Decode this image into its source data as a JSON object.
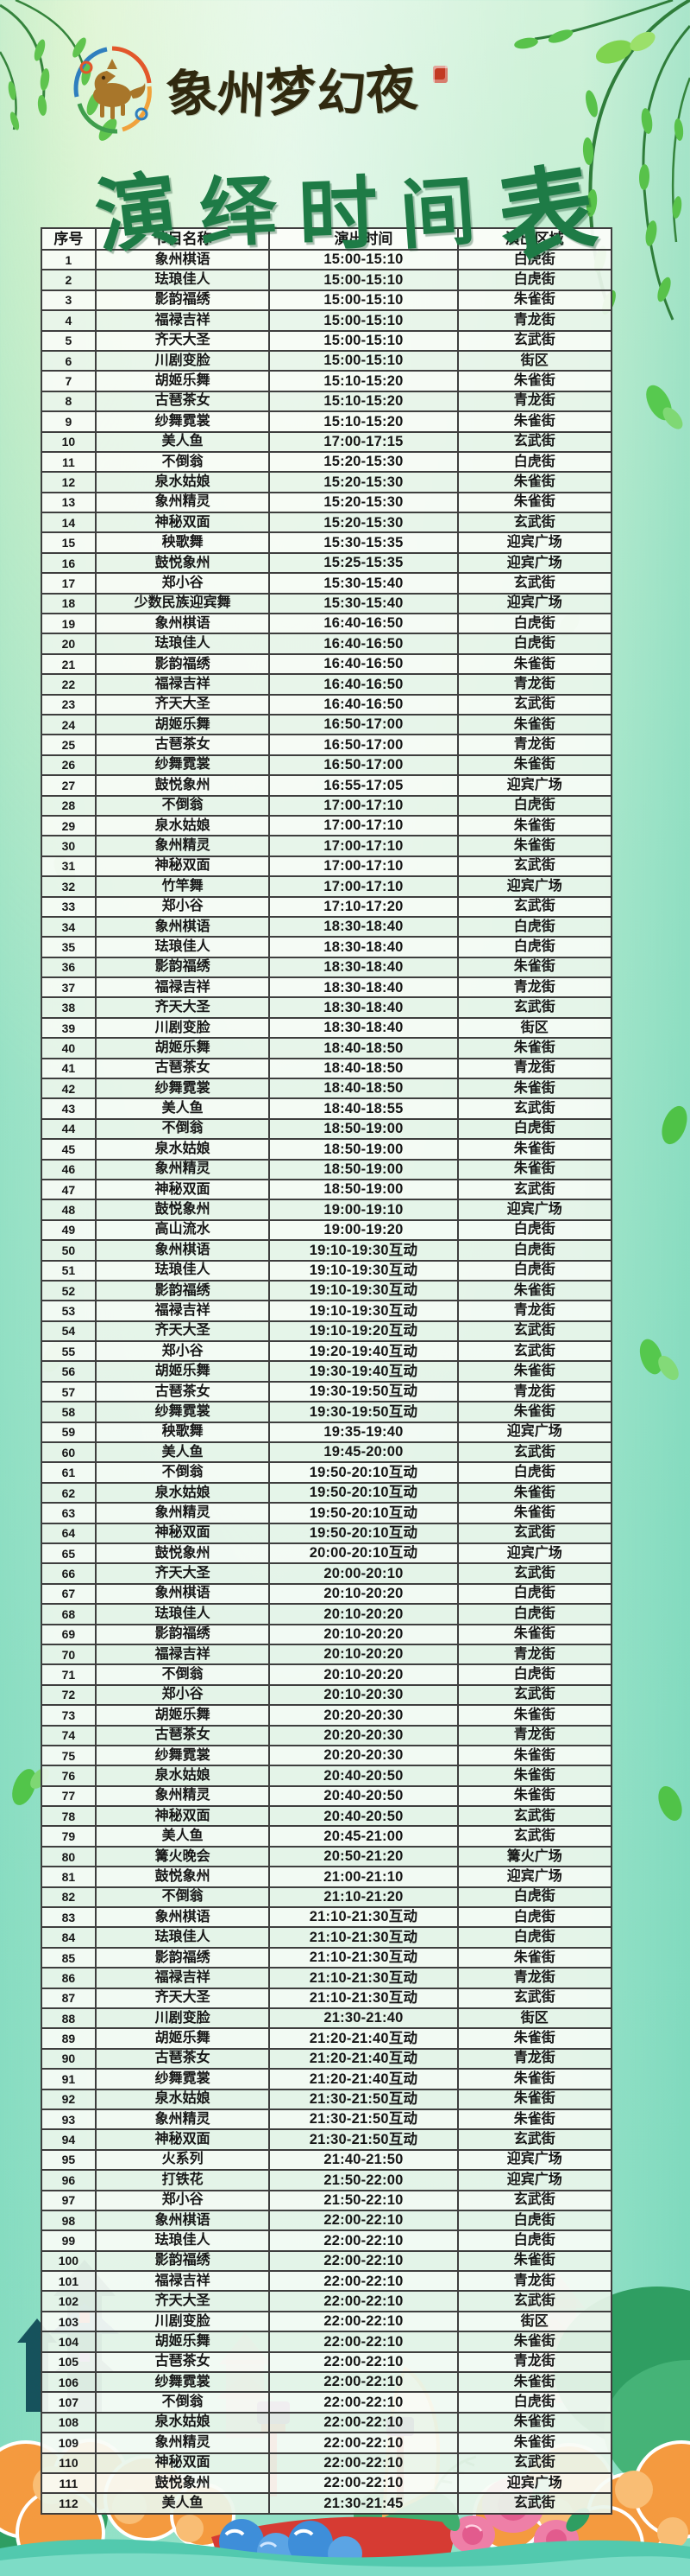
{
  "poster": {
    "brand": "象州梦幻夜",
    "title": "演绎时间表"
  },
  "colors": {
    "background_mint": "#a9e8cd",
    "title_green": "#1e7b46",
    "table_border": "#3e3e3e",
    "seal_red": "#c23a22",
    "cloud_orange": "#f49a3f",
    "flower_pink": "#ee7fa7",
    "wave_blue": "#3e8ed9",
    "boat_red": "#d63b33",
    "band_teal": "#7ddcc6"
  },
  "table": {
    "headers": [
      "序号",
      "节目名称",
      "演出时间",
      "演出区域"
    ],
    "rows": [
      [
        "1",
        "象州棋语",
        "15:00-15:10",
        "白虎街"
      ],
      [
        "2",
        "珐琅佳人",
        "15:00-15:10",
        "白虎街"
      ],
      [
        "3",
        "影韵福绣",
        "15:00-15:10",
        "朱雀街"
      ],
      [
        "4",
        "福禄吉祥",
        "15:00-15:10",
        "青龙街"
      ],
      [
        "5",
        "齐天大圣",
        "15:00-15:10",
        "玄武街"
      ],
      [
        "6",
        "川剧变脸",
        "15:00-15:10",
        "街区"
      ],
      [
        "7",
        "胡姬乐舞",
        "15:10-15:20",
        "朱雀街"
      ],
      [
        "8",
        "古琶茶女",
        "15:10-15:20",
        "青龙街"
      ],
      [
        "9",
        "纱舞霓裳",
        "15:10-15:20",
        "朱雀街"
      ],
      [
        "10",
        "美人鱼",
        "17:00-17:15",
        "玄武街"
      ],
      [
        "11",
        "不倒翁",
        "15:20-15:30",
        "白虎街"
      ],
      [
        "12",
        "泉水姑娘",
        "15:20-15:30",
        "朱雀街"
      ],
      [
        "13",
        "象州精灵",
        "15:20-15:30",
        "朱雀街"
      ],
      [
        "14",
        "神秘双面",
        "15:20-15:30",
        "玄武街"
      ],
      [
        "15",
        "秧歌舞",
        "15:30-15:35",
        "迎宾广场"
      ],
      [
        "16",
        "鼓悦象州",
        "15:25-15:35",
        "迎宾广场"
      ],
      [
        "17",
        "郑小谷",
        "15:30-15:40",
        "玄武街"
      ],
      [
        "18",
        "少数民族迎宾舞",
        "15:30-15:40",
        "迎宾广场"
      ],
      [
        "19",
        "象州棋语",
        "16:40-16:50",
        "白虎街"
      ],
      [
        "20",
        "珐琅佳人",
        "16:40-16:50",
        "白虎街"
      ],
      [
        "21",
        "影韵福绣",
        "16:40-16:50",
        "朱雀街"
      ],
      [
        "22",
        "福禄吉祥",
        "16:40-16:50",
        "青龙街"
      ],
      [
        "23",
        "齐天大圣",
        "16:40-16:50",
        "玄武街"
      ],
      [
        "24",
        "胡姬乐舞",
        "16:50-17:00",
        "朱雀街"
      ],
      [
        "25",
        "古琶茶女",
        "16:50-17:00",
        "青龙街"
      ],
      [
        "26",
        "纱舞霓裳",
        "16:50-17:00",
        "朱雀街"
      ],
      [
        "27",
        "鼓悦象州",
        "16:55-17:05",
        "迎宾广场"
      ],
      [
        "28",
        "不倒翁",
        "17:00-17:10",
        "白虎街"
      ],
      [
        "29",
        "泉水姑娘",
        "17:00-17:10",
        "朱雀街"
      ],
      [
        "30",
        "象州精灵",
        "17:00-17:10",
        "朱雀街"
      ],
      [
        "31",
        "神秘双面",
        "17:00-17:10",
        "玄武街"
      ],
      [
        "32",
        "竹竿舞",
        "17:00-17:10",
        "迎宾广场"
      ],
      [
        "33",
        "郑小谷",
        "17:10-17:20",
        "玄武街"
      ],
      [
        "34",
        "象州棋语",
        "18:30-18:40",
        "白虎街"
      ],
      [
        "35",
        "珐琅佳人",
        "18:30-18:40",
        "白虎街"
      ],
      [
        "36",
        "影韵福绣",
        "18:30-18:40",
        "朱雀街"
      ],
      [
        "37",
        "福禄吉祥",
        "18:30-18:40",
        "青龙街"
      ],
      [
        "38",
        "齐天大圣",
        "18:30-18:40",
        "玄武街"
      ],
      [
        "39",
        "川剧变脸",
        "18:30-18:40",
        "街区"
      ],
      [
        "40",
        "胡姬乐舞",
        "18:40-18:50",
        "朱雀街"
      ],
      [
        "41",
        "古琶茶女",
        "18:40-18:50",
        "青龙街"
      ],
      [
        "42",
        "纱舞霓裳",
        "18:40-18:50",
        "朱雀街"
      ],
      [
        "43",
        "美人鱼",
        "18:40-18:55",
        "玄武街"
      ],
      [
        "44",
        "不倒翁",
        "18:50-19:00",
        "白虎街"
      ],
      [
        "45",
        "泉水姑娘",
        "18:50-19:00",
        "朱雀街"
      ],
      [
        "46",
        "象州精灵",
        "18:50-19:00",
        "朱雀街"
      ],
      [
        "47",
        "神秘双面",
        "18:50-19:00",
        "玄武街"
      ],
      [
        "48",
        "鼓悦象州",
        "19:00-19:10",
        "迎宾广场"
      ],
      [
        "49",
        "高山流水",
        "19:00-19:20",
        "白虎街"
      ],
      [
        "50",
        "象州棋语",
        "19:10-19:30互动",
        "白虎街"
      ],
      [
        "51",
        "珐琅佳人",
        "19:10-19:30互动",
        "白虎街"
      ],
      [
        "52",
        "影韵福绣",
        "19:10-19:30互动",
        "朱雀街"
      ],
      [
        "53",
        "福禄吉祥",
        "19:10-19:30互动",
        "青龙街"
      ],
      [
        "54",
        "齐天大圣",
        "19:10-19:20互动",
        "玄武街"
      ],
      [
        "55",
        "郑小谷",
        "19:20-19:40互动",
        "玄武街"
      ],
      [
        "56",
        "胡姬乐舞",
        "19:30-19:40互动",
        "朱雀街"
      ],
      [
        "57",
        "古琶茶女",
        "19:30-19:50互动",
        "青龙街"
      ],
      [
        "58",
        "纱舞霓裳",
        "19:30-19:50互动",
        "朱雀街"
      ],
      [
        "59",
        "秧歌舞",
        "19:35-19:40",
        "迎宾广场"
      ],
      [
        "60",
        "美人鱼",
        "19:45-20:00",
        "玄武街"
      ],
      [
        "61",
        "不倒翁",
        "19:50-20:10互动",
        "白虎街"
      ],
      [
        "62",
        "泉水姑娘",
        "19:50-20:10互动",
        "朱雀街"
      ],
      [
        "63",
        "象州精灵",
        "19:50-20:10互动",
        "朱雀街"
      ],
      [
        "64",
        "神秘双面",
        "19:50-20:10互动",
        "玄武街"
      ],
      [
        "65",
        "鼓悦象州",
        "20:00-20:10互动",
        "迎宾广场"
      ],
      [
        "66",
        "齐天大圣",
        "20:00-20:10",
        "玄武街"
      ],
      [
        "67",
        "象州棋语",
        "20:10-20:20",
        "白虎街"
      ],
      [
        "68",
        "珐琅佳人",
        "20:10-20:20",
        "白虎街"
      ],
      [
        "69",
        "影韵福绣",
        "20:10-20:20",
        "朱雀街"
      ],
      [
        "70",
        "福禄吉祥",
        "20:10-20:20",
        "青龙街"
      ],
      [
        "71",
        "不倒翁",
        "20:10-20:20",
        "白虎街"
      ],
      [
        "72",
        "郑小谷",
        "20:10-20:30",
        "玄武街"
      ],
      [
        "73",
        "胡姬乐舞",
        "20:20-20:30",
        "朱雀街"
      ],
      [
        "74",
        "古琶茶女",
        "20:20-20:30",
        "青龙街"
      ],
      [
        "75",
        "纱舞霓裳",
        "20:20-20:30",
        "朱雀街"
      ],
      [
        "76",
        "泉水姑娘",
        "20:40-20:50",
        "朱雀街"
      ],
      [
        "77",
        "象州精灵",
        "20:40-20:50",
        "朱雀街"
      ],
      [
        "78",
        "神秘双面",
        "20:40-20:50",
        "玄武街"
      ],
      [
        "79",
        "美人鱼",
        "20:45-21:00",
        "玄武街"
      ],
      [
        "80",
        "篝火晚会",
        "20:50-21:20",
        "篝火广场"
      ],
      [
        "81",
        "鼓悦象州",
        "21:00-21:10",
        "迎宾广场"
      ],
      [
        "82",
        "不倒翁",
        "21:10-21:20",
        "白虎街"
      ],
      [
        "83",
        "象州棋语",
        "21:10-21:30互动",
        "白虎街"
      ],
      [
        "84",
        "珐琅佳人",
        "21:10-21:30互动",
        "白虎街"
      ],
      [
        "85",
        "影韵福绣",
        "21:10-21:30互动",
        "朱雀街"
      ],
      [
        "86",
        "福禄吉祥",
        "21:10-21:30互动",
        "青龙街"
      ],
      [
        "87",
        "齐天大圣",
        "21:10-21:30互动",
        "玄武街"
      ],
      [
        "88",
        "川剧变脸",
        "21:30-21:40",
        "街区"
      ],
      [
        "89",
        "胡姬乐舞",
        "21:20-21:40互动",
        "朱雀街"
      ],
      [
        "90",
        "古琶茶女",
        "21:20-21:40互动",
        "青龙街"
      ],
      [
        "91",
        "纱舞霓裳",
        "21:20-21:40互动",
        "朱雀街"
      ],
      [
        "92",
        "泉水姑娘",
        "21:30-21:50互动",
        "朱雀街"
      ],
      [
        "93",
        "象州精灵",
        "21:30-21:50互动",
        "朱雀街"
      ],
      [
        "94",
        "神秘双面",
        "21:30-21:50互动",
        "玄武街"
      ],
      [
        "95",
        "火系列",
        "21:40-21:50",
        "迎宾广场"
      ],
      [
        "96",
        "打铁花",
        "21:50-22:00",
        "迎宾广场"
      ],
      [
        "97",
        "郑小谷",
        "21:50-22:10",
        "玄武街"
      ],
      [
        "98",
        "象州棋语",
        "22:00-22:10",
        "白虎街"
      ],
      [
        "99",
        "珐琅佳人",
        "22:00-22:10",
        "白虎街"
      ],
      [
        "100",
        "影韵福绣",
        "22:00-22:10",
        "朱雀街"
      ],
      [
        "101",
        "福禄吉祥",
        "22:00-22:10",
        "青龙街"
      ],
      [
        "102",
        "齐天大圣",
        "22:00-22:10",
        "玄武街"
      ],
      [
        "103",
        "川剧变脸",
        "22:00-22:10",
        "街区"
      ],
      [
        "104",
        "胡姬乐舞",
        "22:00-22:10",
        "朱雀街"
      ],
      [
        "105",
        "古琶茶女",
        "22:00-22:10",
        "青龙街"
      ],
      [
        "106",
        "纱舞霓裳",
        "22:00-22:10",
        "朱雀街"
      ],
      [
        "107",
        "不倒翁",
        "22:00-22:10",
        "白虎街"
      ],
      [
        "108",
        "泉水姑娘",
        "22:00-22:10",
        "朱雀街"
      ],
      [
        "109",
        "象州精灵",
        "22:00-22:10",
        "朱雀街"
      ],
      [
        "110",
        "神秘双面",
        "22:00-22:10",
        "玄武街"
      ],
      [
        "111",
        "鼓悦象州",
        "22:00-22:10",
        "迎宾广场"
      ],
      [
        "112",
        "美人鱼",
        "21:30-21:45",
        "玄武街"
      ]
    ]
  }
}
